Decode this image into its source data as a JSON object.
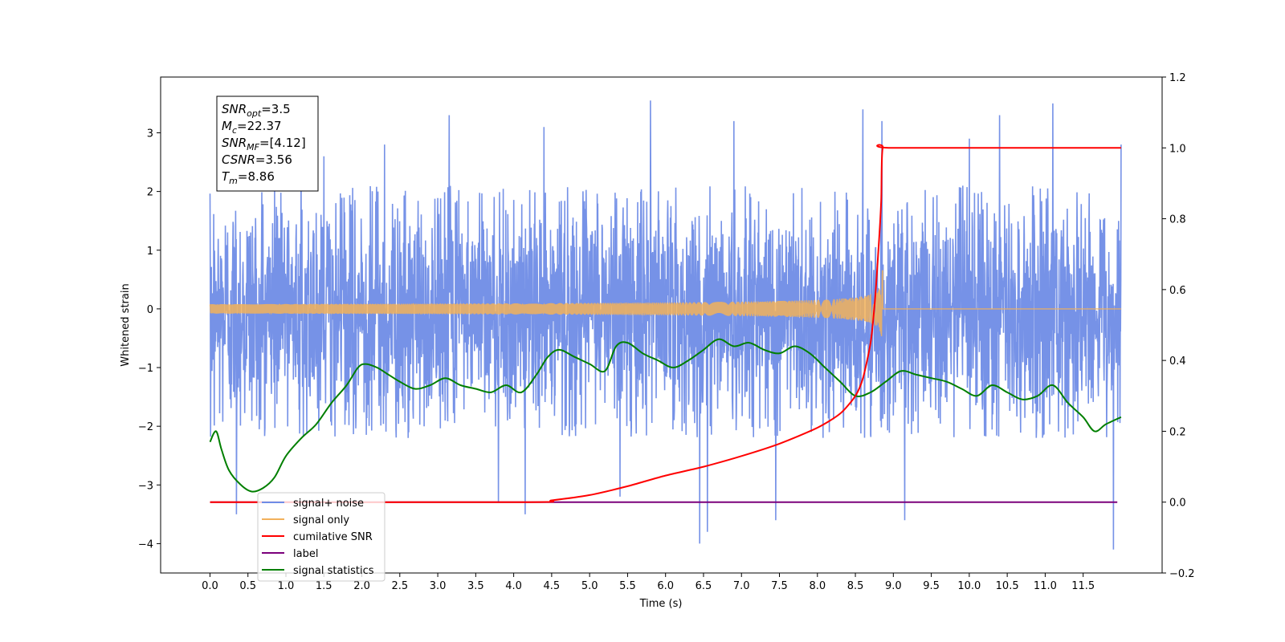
{
  "chart_data": {
    "type": "line",
    "xlabel": "Time (s)",
    "ylabel": "Whitened strain",
    "xlim": [
      -0.65,
      12.54
    ],
    "ylim": [
      -4.5,
      3.95
    ],
    "ylim_right": [
      -0.2,
      1.2
    ],
    "x_ticks": [
      "0.0",
      "0.5",
      "1.0",
      "1.5",
      "2.0",
      "2.5",
      "3.0",
      "3.5",
      "4.0",
      "4.5",
      "5.0",
      "5.5",
      "6.0",
      "6.5",
      "7.0",
      "7.5",
      "8.0",
      "8.5",
      "9.0",
      "9.5",
      "10.0",
      "10.5",
      "11.0",
      "11.5"
    ],
    "y_ticks": [
      "3",
      "2",
      "1",
      "0",
      "−1",
      "−2",
      "−3",
      "−4"
    ],
    "y_ticks_right": [
      "1.2",
      "1.0",
      "0.8",
      "0.6",
      "0.4",
      "0.2",
      "0.0",
      "−0.2"
    ],
    "legend_position": "lower-left",
    "grid": false,
    "annotation": [
      {
        "base": "SNR",
        "sub": "opt",
        "value": "=3.5"
      },
      {
        "base": "M",
        "sub": "c",
        "value": "=22.37"
      },
      {
        "base": "SNR",
        "sub": "MF",
        "value": "=[4.12]"
      },
      {
        "base": "CSNR",
        "sub": "",
        "value": "=3.56"
      },
      {
        "base": "T",
        "sub": "m",
        "value": "=8.86"
      }
    ],
    "series": [
      {
        "name": "signal+ noise",
        "axis": "left",
        "color": "#6f8ce6",
        "kind": "noise",
        "x_range": [
          0.0,
          12.0
        ],
        "envelope_typical": [
          -1.9,
          1.8
        ],
        "spikes": [
          {
            "x": 0.35,
            "y": -3.5
          },
          {
            "x": 1.2,
            "y": 2.4
          },
          {
            "x": 1.5,
            "y": 2.6
          },
          {
            "x": 2.3,
            "y": 2.8
          },
          {
            "x": 3.15,
            "y": 3.3
          },
          {
            "x": 3.8,
            "y": -3.3
          },
          {
            "x": 4.15,
            "y": -3.5
          },
          {
            "x": 4.4,
            "y": 3.1
          },
          {
            "x": 5.4,
            "y": -3.2
          },
          {
            "x": 5.8,
            "y": 3.55
          },
          {
            "x": 6.45,
            "y": -4.0
          },
          {
            "x": 6.55,
            "y": -3.8
          },
          {
            "x": 6.9,
            "y": 3.2
          },
          {
            "x": 7.45,
            "y": -3.6
          },
          {
            "x": 8.6,
            "y": 3.4
          },
          {
            "x": 8.85,
            "y": 3.2
          },
          {
            "x": 9.15,
            "y": -3.6
          },
          {
            "x": 10.0,
            "y": 2.9
          },
          {
            "x": 10.4,
            "y": 3.3
          },
          {
            "x": 11.1,
            "y": 3.5
          },
          {
            "x": 11.9,
            "y": -4.1
          },
          {
            "x": 12.0,
            "y": 2.8
          }
        ]
      },
      {
        "name": "signal only",
        "axis": "left",
        "color": "#f2b15b",
        "kind": "chirp",
        "merger_time": 8.86,
        "x_range": [
          0.0,
          12.0
        ],
        "peak_amplitude": 0.65
      },
      {
        "name": "cumilative SNR",
        "axis": "right",
        "color": "#ff0000",
        "x": [
          0,
          4.2,
          4.5,
          5.0,
          5.5,
          6.0,
          6.5,
          7.0,
          7.5,
          8.0,
          8.3,
          8.5,
          8.6,
          8.7,
          8.75,
          8.8,
          8.84,
          8.86,
          9.0,
          12.0
        ],
        "y": [
          0,
          0,
          0.005,
          0.02,
          0.045,
          0.075,
          0.1,
          0.13,
          0.165,
          0.21,
          0.25,
          0.3,
          0.35,
          0.45,
          0.55,
          0.7,
          0.85,
          1.0,
          1.0,
          1.0
        ]
      },
      {
        "name": "label",
        "axis": "right",
        "color": "#7b007b",
        "x": [
          0,
          11.95
        ],
        "y": [
          0,
          0
        ]
      },
      {
        "name": "signal statistics",
        "axis": "right",
        "color": "#007f00",
        "x": [
          0,
          0.08,
          0.15,
          0.25,
          0.4,
          0.55,
          0.7,
          0.85,
          1.0,
          1.2,
          1.4,
          1.6,
          1.8,
          1.95,
          2.05,
          2.2,
          2.35,
          2.5,
          2.7,
          2.9,
          3.1,
          3.3,
          3.5,
          3.7,
          3.9,
          4.1,
          4.3,
          4.45,
          4.6,
          4.8,
          5.0,
          5.2,
          5.35,
          5.5,
          5.7,
          5.9,
          6.1,
          6.3,
          6.5,
          6.7,
          6.9,
          7.1,
          7.3,
          7.5,
          7.7,
          7.9,
          8.1,
          8.3,
          8.5,
          8.7,
          8.9,
          9.1,
          9.3,
          9.5,
          9.7,
          9.9,
          10.1,
          10.3,
          10.5,
          10.7,
          10.9,
          11.1,
          11.3,
          11.5,
          11.65,
          11.8,
          12.0
        ],
        "y": [
          0.17,
          0.2,
          0.15,
          0.09,
          0.05,
          0.03,
          0.04,
          0.07,
          0.13,
          0.18,
          0.22,
          0.28,
          0.33,
          0.38,
          0.39,
          0.38,
          0.36,
          0.34,
          0.32,
          0.33,
          0.35,
          0.33,
          0.32,
          0.31,
          0.33,
          0.31,
          0.36,
          0.41,
          0.43,
          0.41,
          0.39,
          0.37,
          0.44,
          0.45,
          0.42,
          0.4,
          0.38,
          0.4,
          0.43,
          0.46,
          0.44,
          0.45,
          0.43,
          0.42,
          0.44,
          0.42,
          0.38,
          0.34,
          0.3,
          0.31,
          0.34,
          0.37,
          0.36,
          0.35,
          0.34,
          0.32,
          0.3,
          0.33,
          0.31,
          0.29,
          0.3,
          0.33,
          0.28,
          0.24,
          0.2,
          0.22,
          0.24
        ]
      }
    ]
  }
}
